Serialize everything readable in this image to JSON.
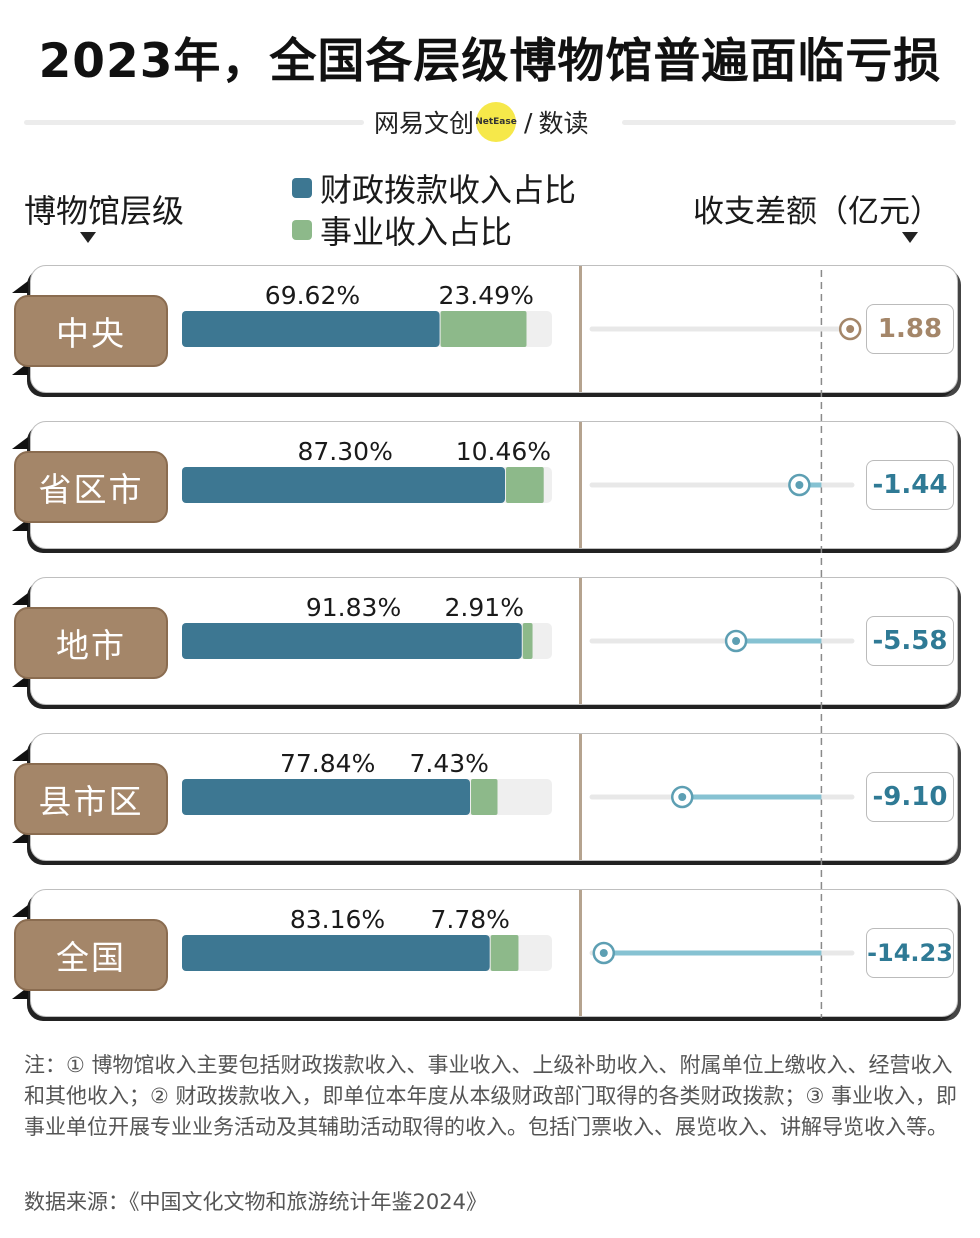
{
  "title": "2023年，全国各层级博物馆普遍面临亏损",
  "brand": {
    "name": "网易文创",
    "logo": "NetEase",
    "sep": "/",
    "column": "数读"
  },
  "headers": {
    "level": "博物馆层级",
    "diff": "收支差额（亿元）"
  },
  "colors": {
    "fiscal": "#3d7792",
    "business": "#8db98a",
    "track": "#efefef",
    "tab": "#a48669",
    "negative_line": "#86c2d2",
    "positive_dot": "#a48669",
    "positive_text": "#a48669",
    "negative_text": "#2f7a95"
  },
  "chart_data": {
    "type": "bar",
    "orientation": "horizontal-stacked",
    "categories": [
      "中央",
      "省区市",
      "地市",
      "县市区",
      "全国"
    ],
    "series": [
      {
        "name": "财政拨款收入占比",
        "values": [
          69.62,
          87.3,
          91.83,
          77.84,
          83.16
        ],
        "labels": [
          "69.62%",
          "87.30%",
          "91.83%",
          "77.84%",
          "83.16%"
        ]
      },
      {
        "name": "事业收入占比",
        "values": [
          23.49,
          10.46,
          2.91,
          7.43,
          7.78
        ],
        "labels": [
          "23.49%",
          "10.46%",
          "2.91%",
          "7.43%",
          "7.78%"
        ]
      }
    ],
    "xlim": [
      0,
      100
    ],
    "balance": {
      "values": [
        1.88,
        -1.44,
        -5.58,
        -9.1,
        -14.23
      ],
      "labels": [
        "1.88",
        "-1.44",
        "-5.58",
        "-9.10",
        "-14.23"
      ],
      "xlim": [
        -15,
        2
      ]
    }
  },
  "note": "注：① 博物馆收入主要包括财政拨款收入、事业收入、上级补助收入、附属单位上缴收入、经营收入和其他收入；② 财政拨款收入，即单位本年度从本级财政部门取得的各类财政拨款；③ 事业收入，即事业单位开展专业业务活动及其辅助活动取得的收入。包括门票收入、展览收入、讲解导览收入等。",
  "source": "数据来源：《中国文化文物和旅游统计年鉴2024》"
}
